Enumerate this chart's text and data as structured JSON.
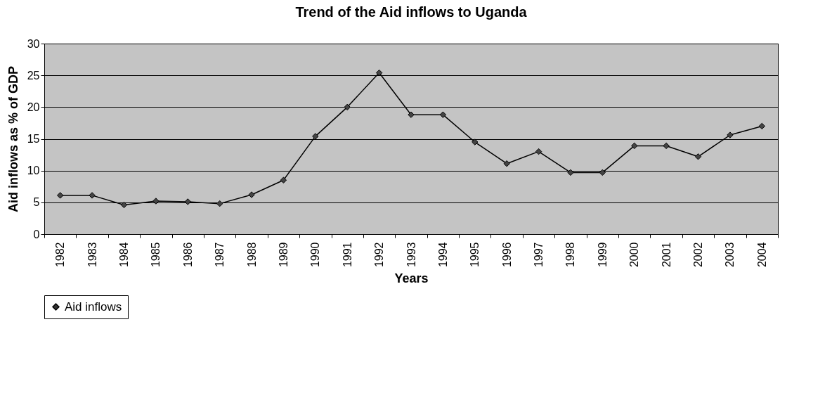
{
  "chart_data": {
    "type": "line",
    "title": "Trend of the Aid inflows to Uganda",
    "xlabel": "Years",
    "ylabel": "Aid inflows as % of GDP",
    "categories": [
      "1982",
      "1983",
      "1984",
      "1985",
      "1986",
      "1987",
      "1988",
      "1989",
      "1990",
      "1991",
      "1992",
      "1993",
      "1994",
      "1995",
      "1996",
      "1997",
      "1998",
      "1999",
      "2000",
      "2001",
      "2002",
      "2003",
      "2004"
    ],
    "series": [
      {
        "name": "Aid inflows",
        "color": "#000000",
        "values": [
          6.1,
          6.1,
          4.6,
          5.2,
          5.1,
          4.8,
          6.2,
          8.5,
          15.4,
          20,
          25.4,
          18.8,
          18.8,
          14.5,
          11.1,
          13,
          9.7,
          9.7,
          13.9,
          13.9,
          12.2,
          15.6,
          17
        ]
      }
    ],
    "ylim": [
      0,
      30
    ],
    "yticks": [
      0,
      5,
      10,
      15,
      20,
      25,
      30
    ],
    "grid": "y",
    "legend": "bottom",
    "marker": "diamond"
  }
}
